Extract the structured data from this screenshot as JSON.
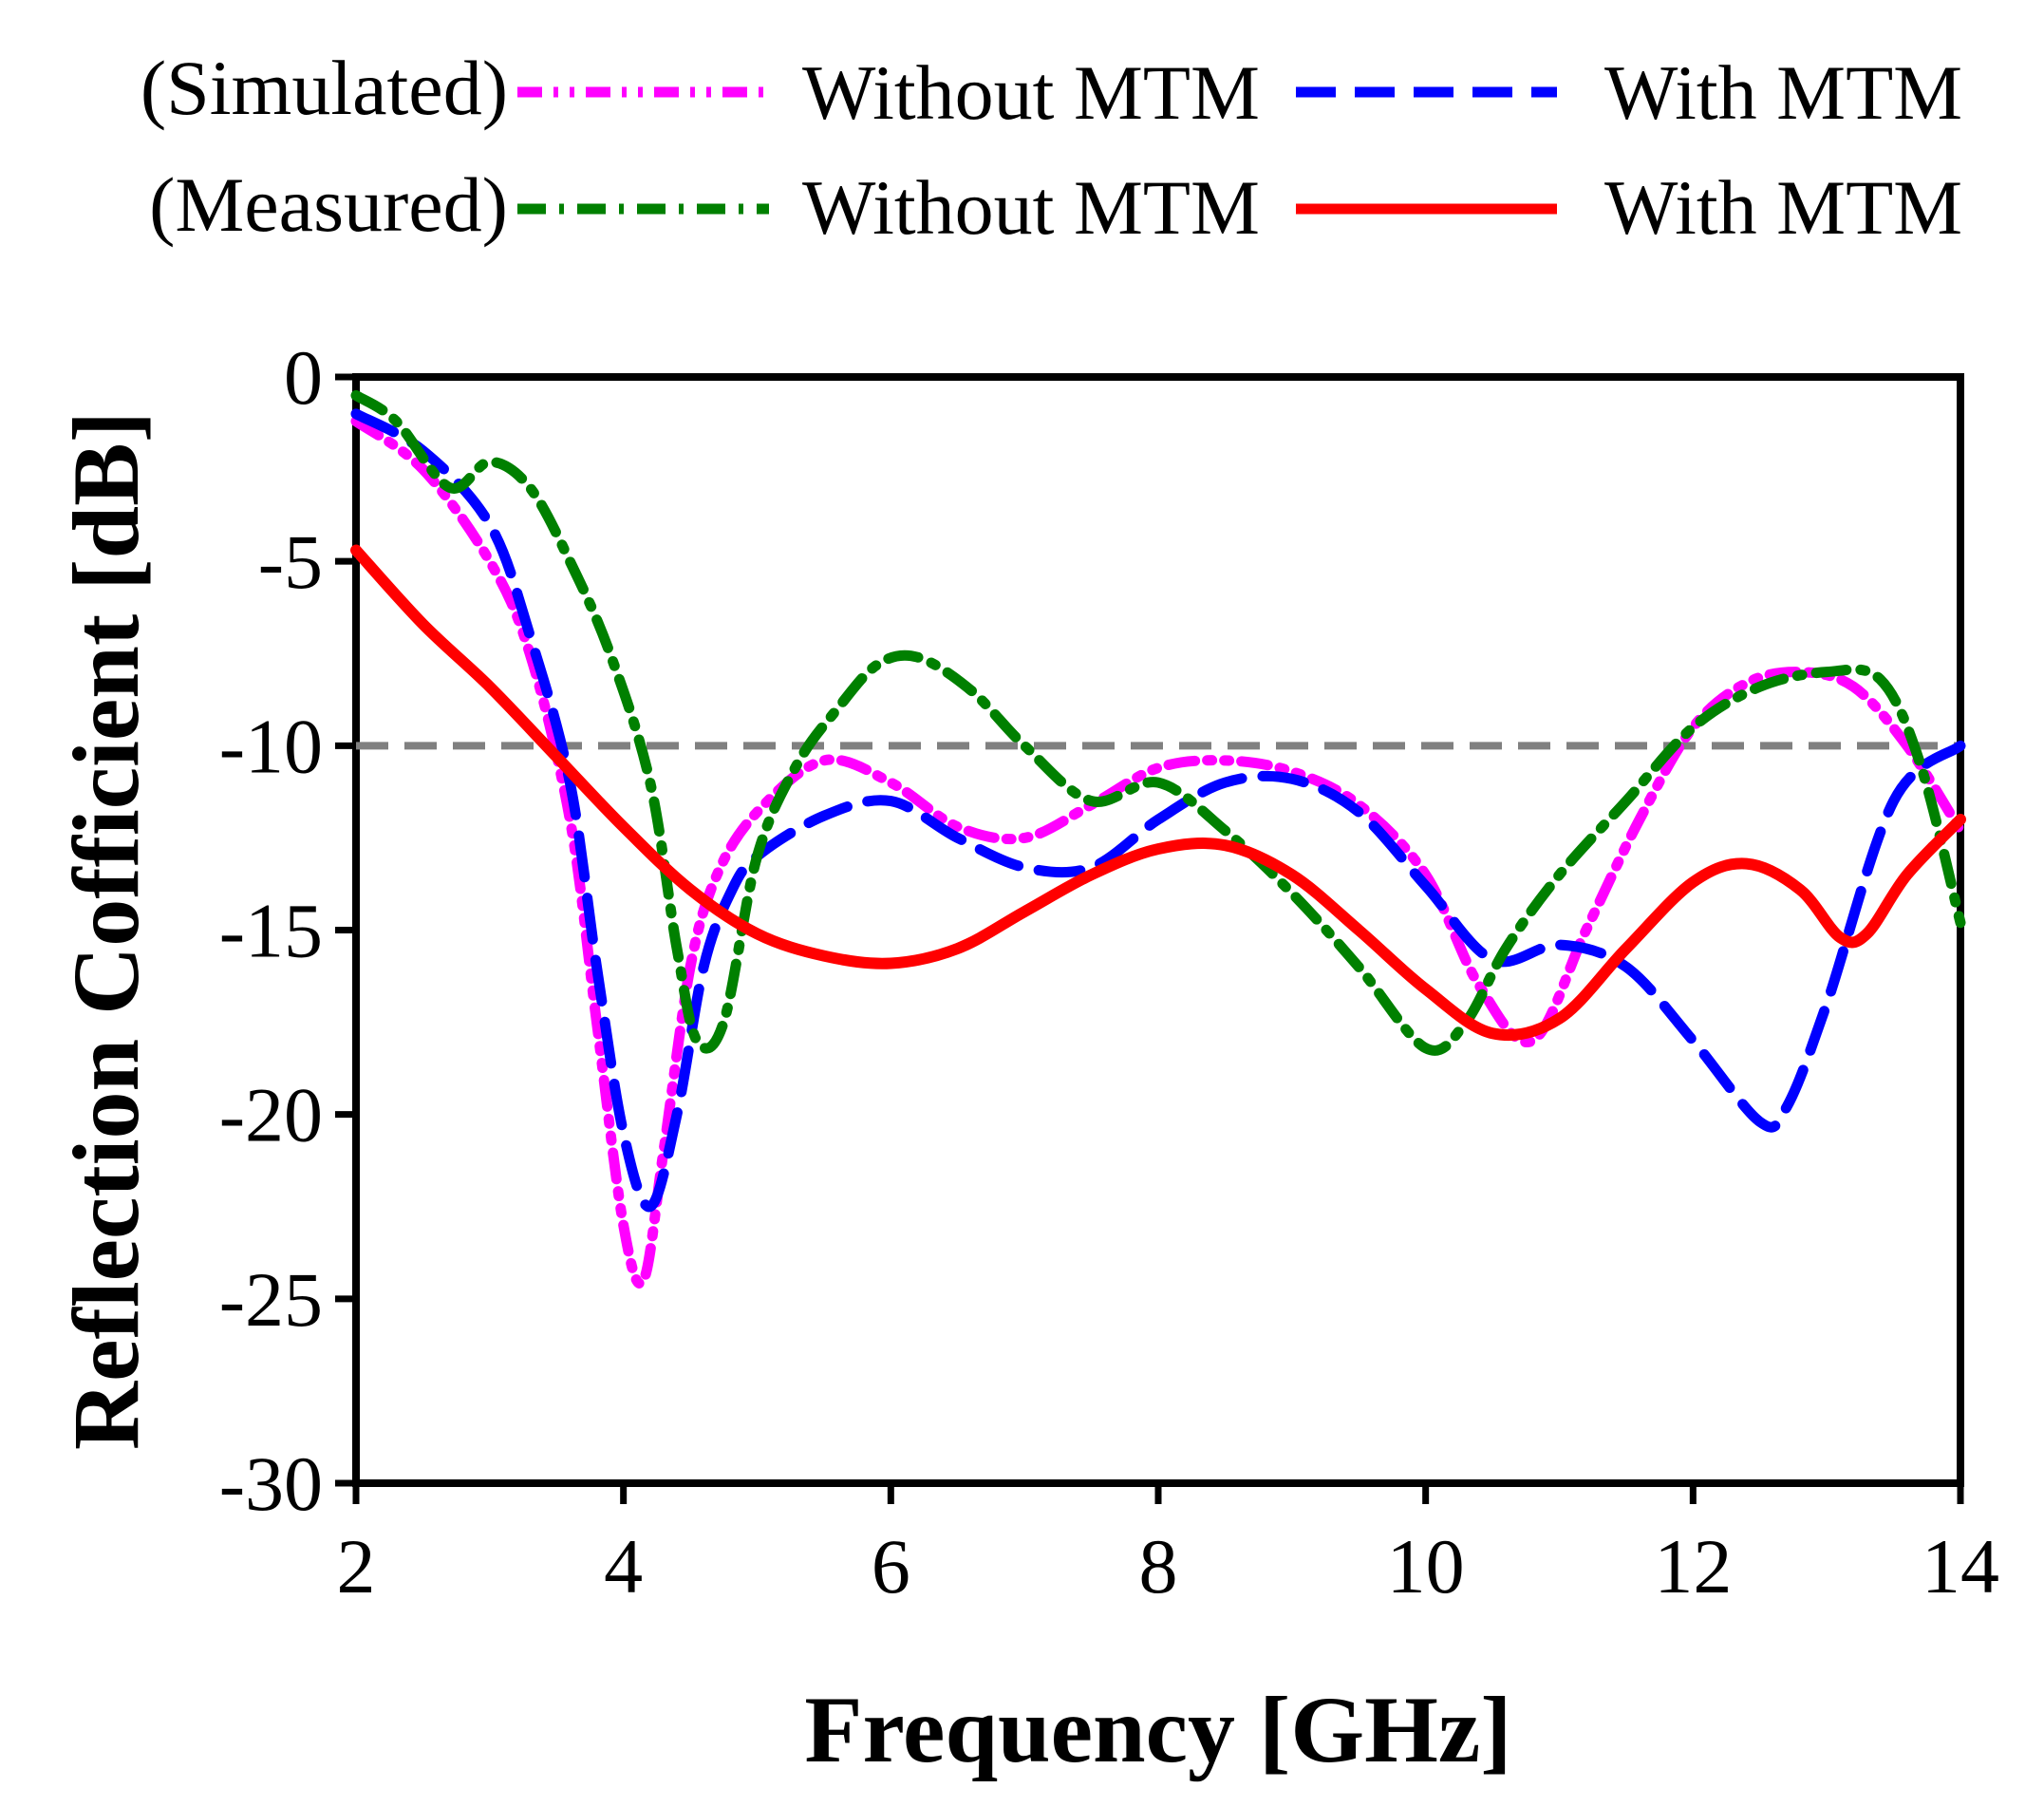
{
  "chart_data": {
    "type": "line",
    "title": "",
    "xlabel": "Frequency [GHz]",
    "ylabel": "Reflection Cofficient [dB]",
    "xlim": [
      2,
      14
    ],
    "ylim": [
      -30,
      0
    ],
    "xticks": [
      2,
      4,
      6,
      8,
      10,
      12,
      14
    ],
    "yticks": [
      0,
      -5,
      -10,
      -15,
      -20,
      -25,
      -30
    ],
    "xtick_labels": [
      "2",
      "4",
      "6",
      "8",
      "10",
      "12",
      "14"
    ],
    "ytick_labels": [
      "0",
      "-5",
      "-10",
      "-15",
      "-20",
      "-25",
      "-30"
    ],
    "grid": false,
    "legend_position": "top",
    "legend": {
      "simulated_label": "(Simulated)",
      "measured_label": "(Measured)"
    },
    "reference_line": {
      "y": -10,
      "color": "#808080"
    },
    "series": [
      {
        "name": "Without MTM",
        "group": "Simulated",
        "color": "#ff00ff",
        "style": "dash-dot-dot",
        "x": [
          2.0,
          2.5,
          3.0,
          3.3,
          3.6,
          3.8,
          4.0,
          4.15,
          4.3,
          4.5,
          4.7,
          5.0,
          5.5,
          6.0,
          6.5,
          7.0,
          7.5,
          8.0,
          8.5,
          9.0,
          9.5,
          10.0,
          10.4,
          10.8,
          11.2,
          11.6,
          12.0,
          12.4,
          12.8,
          13.2,
          13.6,
          14.0
        ],
        "y": [
          -1.2,
          -2.5,
          -5.0,
          -7.5,
          -12.0,
          -17.5,
          -23.0,
          -24.5,
          -21.0,
          -16.0,
          -13.5,
          -11.8,
          -10.4,
          -11.0,
          -12.2,
          -12.5,
          -11.6,
          -10.6,
          -10.4,
          -10.7,
          -11.6,
          -13.5,
          -16.5,
          -18.0,
          -15.0,
          -12.0,
          -9.5,
          -8.3,
          -8.0,
          -8.4,
          -10.0,
          -12.3
        ]
      },
      {
        "name": "With MTM",
        "group": "Simulated",
        "color": "#0000ff",
        "style": "dash",
        "x": [
          2.0,
          2.5,
          3.0,
          3.3,
          3.6,
          3.8,
          4.0,
          4.2,
          4.4,
          4.6,
          4.8,
          5.0,
          5.5,
          6.0,
          6.5,
          7.0,
          7.5,
          8.0,
          8.5,
          9.0,
          9.5,
          10.0,
          10.5,
          11.0,
          11.5,
          12.0,
          12.5,
          12.7,
          13.0,
          13.5,
          14.0
        ],
        "y": [
          -1.0,
          -2.0,
          -4.0,
          -7.0,
          -11.0,
          -16.0,
          -20.5,
          -22.5,
          -20.0,
          -16.0,
          -14.0,
          -13.0,
          -11.9,
          -11.5,
          -12.5,
          -13.3,
          -13.3,
          -12.0,
          -11.0,
          -10.9,
          -11.8,
          -13.8,
          -15.8,
          -15.4,
          -16.0,
          -18.0,
          -20.2,
          -19.8,
          -17.0,
          -11.5,
          -10.0
        ]
      },
      {
        "name": "Without MTM",
        "group": "Measured",
        "color": "#008000",
        "style": "dash-dot",
        "x": [
          2.0,
          2.3,
          2.7,
          3.0,
          3.3,
          3.6,
          3.9,
          4.2,
          4.4,
          4.55,
          4.75,
          5.0,
          5.3,
          5.6,
          5.9,
          6.2,
          6.6,
          7.0,
          7.5,
          8.0,
          8.5,
          9.0,
          9.5,
          10.0,
          10.3,
          10.6,
          11.0,
          11.5,
          12.0,
          12.5,
          13.0,
          13.4,
          13.7,
          14.0
        ],
        "y": [
          -0.5,
          -1.2,
          -3.0,
          -2.3,
          -3.0,
          -5.0,
          -7.5,
          -11.0,
          -15.5,
          -18.0,
          -17.5,
          -13.0,
          -10.5,
          -9.0,
          -7.8,
          -7.6,
          -8.5,
          -10.0,
          -11.5,
          -11.0,
          -12.3,
          -14.0,
          -16.0,
          -18.2,
          -17.5,
          -15.5,
          -13.5,
          -11.5,
          -9.5,
          -8.4,
          -8.0,
          -8.2,
          -10.5,
          -14.8
        ]
      },
      {
        "name": "With MTM",
        "group": "Measured",
        "color": "#ff0000",
        "style": "solid",
        "x": [
          2.0,
          2.5,
          3.0,
          3.5,
          4.0,
          4.5,
          5.0,
          5.5,
          6.0,
          6.5,
          7.0,
          7.5,
          8.0,
          8.5,
          9.0,
          9.5,
          10.0,
          10.5,
          11.0,
          11.5,
          12.0,
          12.4,
          12.8,
          13.1,
          13.3,
          13.6,
          14.0
        ],
        "y": [
          -4.7,
          -6.7,
          -8.4,
          -10.3,
          -12.2,
          -13.9,
          -15.1,
          -15.7,
          -15.9,
          -15.5,
          -14.5,
          -13.5,
          -12.8,
          -12.7,
          -13.5,
          -15.0,
          -16.6,
          -17.8,
          -17.4,
          -15.5,
          -13.7,
          -13.2,
          -13.9,
          -15.2,
          -15.1,
          -13.5,
          -12.0
        ]
      }
    ]
  }
}
